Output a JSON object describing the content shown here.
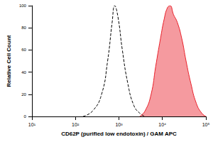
{
  "chart_data": {
    "type": "line",
    "x_label": "CD62P (purified low endotoxin) / GAM APC",
    "y_label": "Relative Cell Count",
    "log": "x",
    "grid": false,
    "xlim": [
      10,
      100000
    ],
    "xticks": [
      {
        "value": 10,
        "label": "10¹"
      },
      {
        "value": 100,
        "label": "10²"
      },
      {
        "value": 1000,
        "label": "10³"
      },
      {
        "value": 10000,
        "label": "10⁴"
      },
      {
        "value": 100000,
        "label": "10⁵"
      }
    ],
    "ylim": [
      0,
      100
    ],
    "yticks": [
      0,
      20,
      40,
      60,
      80,
      100
    ],
    "series": [
      {
        "color": "#000000",
        "line_style": "dashed",
        "x": [
          150,
          250,
          400,
          550,
          700,
          800,
          950,
          1200,
          1600,
          2200,
          3000,
          4000
        ],
        "values": [
          0,
          5,
          20,
          50,
          85,
          100,
          90,
          60,
          30,
          10,
          3,
          0
        ]
      },
      {
        "color": "#e8202a",
        "type": "area",
        "x": [
          3000,
          4000,
          5500,
          7000,
          9000,
          11000,
          13000,
          15000,
          18000,
          22000,
          28000,
          35000,
          45000,
          60000,
          80000,
          100000
        ],
        "values": [
          0,
          5,
          20,
          45,
          70,
          88,
          98,
          100,
          92,
          85,
          70,
          50,
          30,
          12,
          3,
          0
        ]
      }
    ]
  }
}
